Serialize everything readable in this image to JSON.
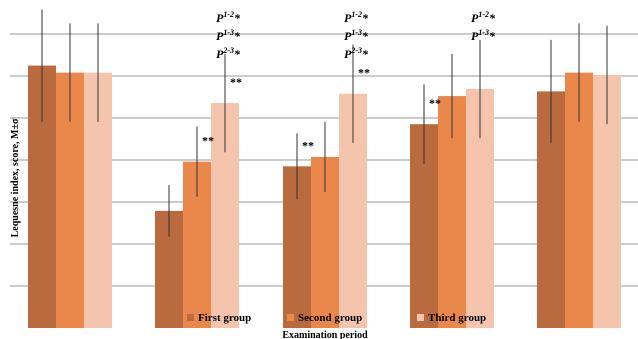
{
  "chart_data": {
    "type": "bar",
    "ylabel": "Lequesne index, score, M±σ",
    "xlabel": "Examination  period",
    "ylim": [
      0,
      14
    ],
    "grid": true,
    "legend_position": "bottom",
    "categories": [
      "",
      "",
      "",
      "",
      ""
    ],
    "series": [
      {
        "name": "First group",
        "color": "#b96a3e",
        "values": [
          11.2,
          5.0,
          6.9,
          8.7,
          10.1
        ],
        "errors": [
          2.4,
          1.1,
          1.4,
          1.7,
          2.2
        ]
      },
      {
        "name": "Second group",
        "color": "#e9884a",
        "values": [
          10.9,
          7.1,
          7.3,
          9.9,
          10.9
        ],
        "errors": [
          2.1,
          1.5,
          1.5,
          1.8,
          2.1
        ]
      },
      {
        "name": "Third group",
        "color": "#f4c4ad",
        "values": [
          10.9,
          9.6,
          10.0,
          10.2,
          10.8
        ],
        "errors": [
          2.1,
          2.1,
          2.1,
          2.1,
          2.1
        ]
      }
    ],
    "significance": [
      {
        "category_index": 1,
        "series_index": 1,
        "label": "**"
      },
      {
        "category_index": 1,
        "series_index": 2,
        "label": "**"
      },
      {
        "category_index": 2,
        "series_index": 0,
        "label": "**"
      },
      {
        "category_index": 2,
        "series_index": 2,
        "label": "**"
      },
      {
        "category_index": 3,
        "series_index": 0,
        "label": "**"
      }
    ],
    "p_annotations": [
      {
        "category_index": 1,
        "labels": [
          {
            "sup": "1-2"
          },
          {
            "sup": "1-3"
          },
          {
            "sup": "2-3"
          }
        ]
      },
      {
        "category_index": 2,
        "labels": [
          {
            "sup": "1-2"
          },
          {
            "sup": "1-3"
          },
          {
            "sup": "2-3"
          }
        ]
      },
      {
        "category_index": 3,
        "labels": [
          {
            "sup": "1-2"
          },
          {
            "sup": "1-3"
          }
        ]
      }
    ],
    "p_prefix": "P",
    "p_suffix": "*"
  }
}
